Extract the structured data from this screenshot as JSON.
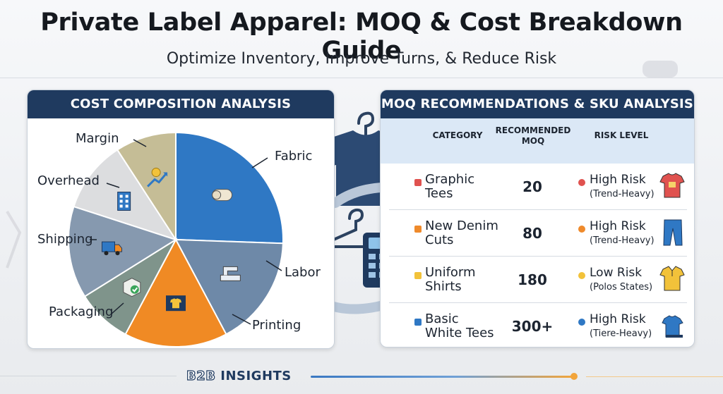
{
  "header": {
    "title": "Private Label Apparel: MOQ & Cost Breakdown Guide",
    "subtitle": "Optimize Inventory, Improve Turns, & Reduce Risk"
  },
  "cost_panel": {
    "heading": "COST COMPOSITION ANALYSIS",
    "slices": [
      {
        "label": "Fabric",
        "color": "#2f78c4",
        "icon": "fabric-roll-icon"
      },
      {
        "label": "Labor",
        "color": "#6e89a8",
        "icon": "sewing-machine-icon"
      },
      {
        "label": "Printing",
        "color": "#f08a24",
        "icon": "screen-print-icon"
      },
      {
        "label": "Packaging",
        "color": "#7f948b",
        "icon": "box-check-icon"
      },
      {
        "label": "Shipping",
        "color": "#8699af",
        "icon": "truck-icon"
      },
      {
        "label": "Overhead",
        "color": "#dcdddf",
        "icon": "building-icon"
      },
      {
        "label": "Margin",
        "color": "#c5bd96",
        "icon": "growth-arrow-icon"
      }
    ]
  },
  "moq_panel": {
    "heading": "MOQ RECOMMENDATIONS & SKU ANALYSIS",
    "columns": {
      "category": "CATEGORY",
      "moq_line1": "RECOMMENDED",
      "moq_line2": "MOQ",
      "risk": "RISK LEVEL"
    },
    "rows": [
      {
        "cat1": "Graphic",
        "cat2": "Tees",
        "moq": "20",
        "risk": "High Risk",
        "note": "(Trend-Heavy)",
        "bullet_color": "#e0524f",
        "risk_color": "#e0524f",
        "icon": "red-tshirt-icon"
      },
      {
        "cat1": "New Denim",
        "cat2": "Cuts",
        "moq": "80",
        "risk": "High Risk",
        "note": "(Trend-Heavy)",
        "bullet_color": "#ef8a2b",
        "risk_color": "#ef8a2b",
        "icon": "jeans-icon"
      },
      {
        "cat1": "Uniform",
        "cat2": "Shirts",
        "moq": "180",
        "risk": "Low Risk",
        "note": "(Polos States)",
        "bullet_color": "#f2c23a",
        "risk_color": "#f2c23a",
        "icon": "yellow-polo-icon"
      },
      {
        "cat1": "Basic",
        "cat2": "White Tees",
        "moq": "300+",
        "risk": "High Risk",
        "note": "(Tiere-Heavy)",
        "bullet_color": "#2f78c4",
        "risk_color": "#2f78c4",
        "icon": "blue-tshirt-stack-icon"
      }
    ]
  },
  "footer": {
    "brand_prefix": "B2B",
    "brand_suffix": "INSIGHTS"
  }
}
